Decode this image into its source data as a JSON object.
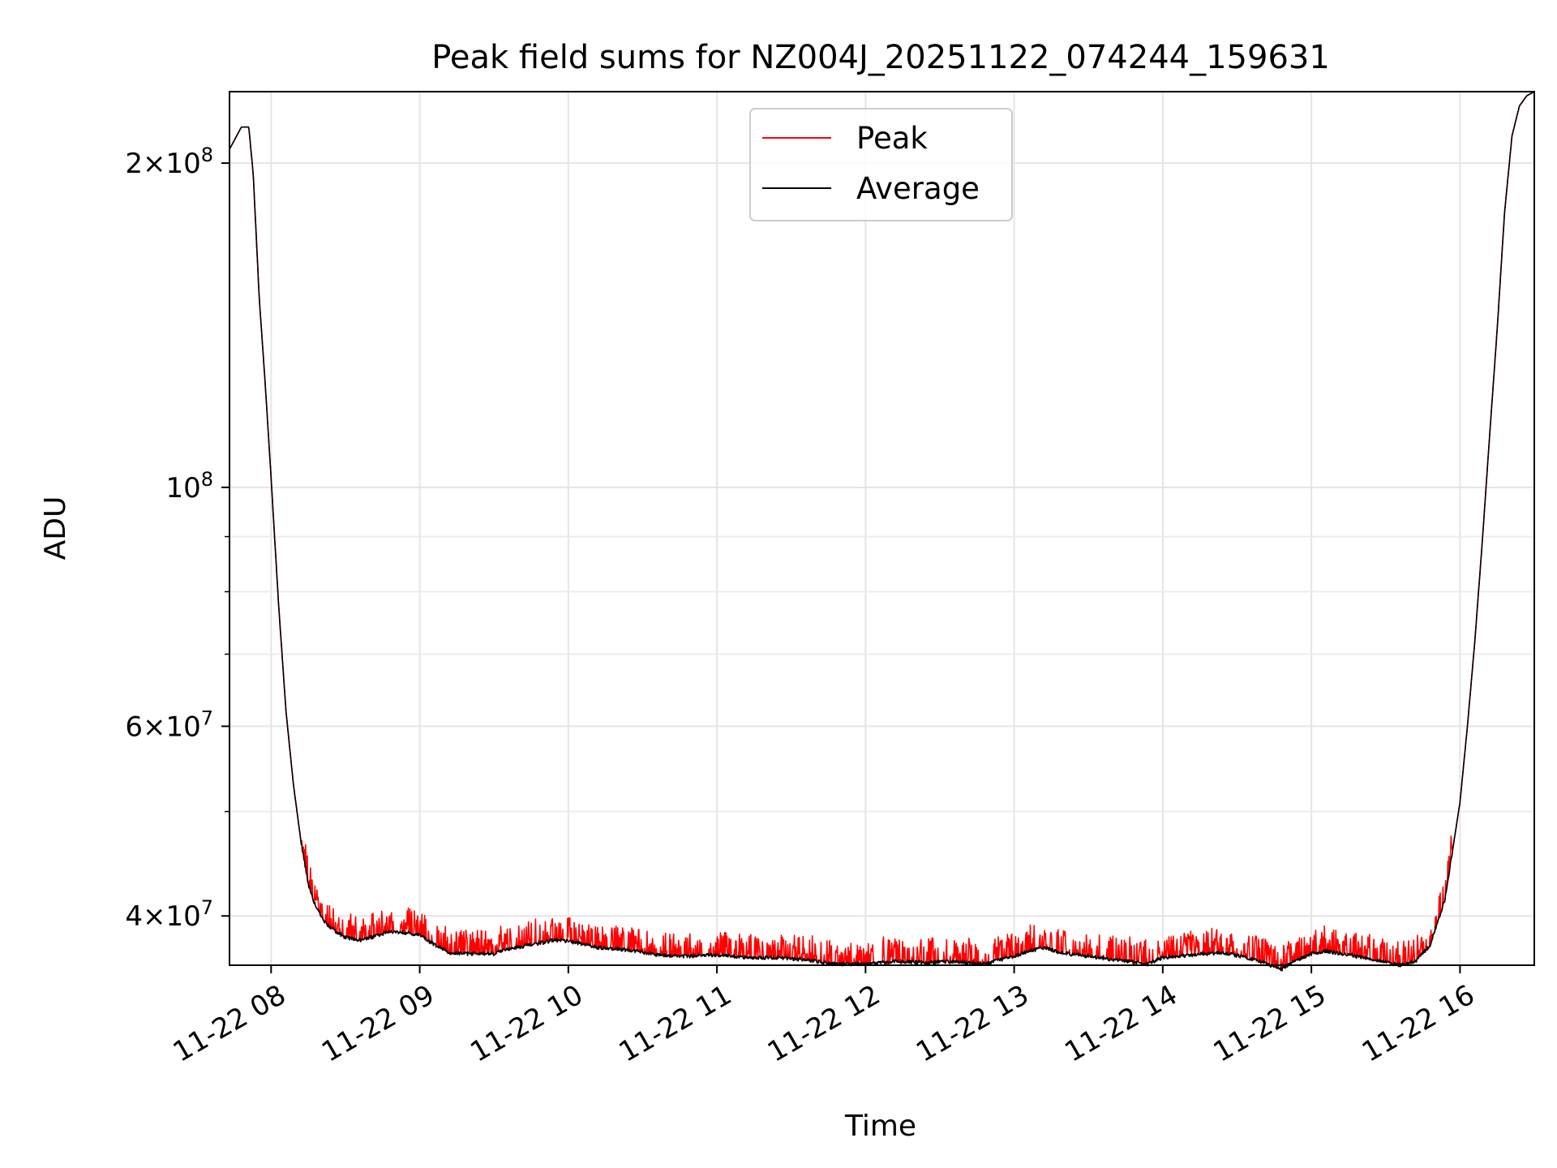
{
  "chart_data": {
    "type": "line",
    "title": "Peak field sums for NZ004J_20251122_074244_159631",
    "xlabel": "Time",
    "ylabel": "ADU",
    "yscale": "log",
    "xlim_hours": [
      7.72,
      16.5
    ],
    "ylim": [
      36000000,
      233000000
    ],
    "grid": true,
    "legend_position": "upper center",
    "x_tick_labels": [
      "11-22 08",
      "11-22 09",
      "11-22 10",
      "11-22 11",
      "11-22 12",
      "11-22 13",
      "11-22 14",
      "11-22 15",
      "11-22 16"
    ],
    "x_tick_hours": [
      8,
      9,
      10,
      11,
      12,
      13,
      14,
      15,
      16
    ],
    "y_major_ticks": [
      {
        "value": 40000000,
        "coef": "4",
        "exp": "7"
      },
      {
        "value": 60000000,
        "coef": "6",
        "exp": "7"
      },
      {
        "value": 100000000,
        "coef": "",
        "exp": "8"
      },
      {
        "value": 200000000,
        "coef": "2",
        "exp": "8"
      }
    ],
    "y_minor_ticks": [
      50000000,
      70000000,
      80000000,
      90000000
    ],
    "series": [
      {
        "name": "Peak",
        "color": "#ff0000",
        "note": "Follows the average with frequent upward spikes of roughly 3-5% during 08:15-15:55"
      },
      {
        "name": "Average",
        "color": "#000000",
        "hours": [
          7.72,
          7.8,
          7.85,
          7.88,
          7.92,
          7.96,
          8.0,
          8.05,
          8.1,
          8.15,
          8.2,
          8.25,
          8.3,
          8.35,
          8.4,
          8.5,
          8.6,
          8.7,
          8.8,
          8.9,
          9.0,
          9.1,
          9.2,
          9.3,
          9.5,
          9.6,
          9.7,
          9.8,
          9.9,
          10.0,
          10.2,
          10.4,
          10.6,
          10.8,
          11.0,
          11.2,
          11.4,
          11.6,
          11.8,
          12.0,
          12.2,
          12.4,
          12.6,
          12.8,
          13.0,
          13.1,
          13.2,
          13.3,
          13.5,
          13.7,
          13.9,
          14.0,
          14.2,
          14.4,
          14.6,
          14.7,
          14.8,
          14.9,
          15.0,
          15.1,
          15.2,
          15.4,
          15.6,
          15.7,
          15.8,
          15.9,
          16.0,
          16.05,
          16.1,
          16.15,
          16.2,
          16.25,
          16.3,
          16.35,
          16.4,
          16.45,
          16.5
        ],
        "values": [
          206000000,
          216000000,
          216000000,
          195000000,
          150000000,
          125000000,
          102000000,
          78000000,
          62000000,
          53000000,
          47000000,
          42800000,
          40800000,
          39700000,
          39000000,
          38200000,
          38000000,
          38300000,
          38700000,
          38600000,
          38400000,
          37600000,
          37000000,
          36900000,
          36900000,
          37300000,
          37500000,
          37700000,
          38000000,
          37900000,
          37400000,
          37200000,
          36800000,
          36700000,
          36800000,
          36600000,
          36600000,
          36400000,
          36100000,
          36100000,
          36300000,
          36200000,
          36300000,
          36100000,
          36700000,
          37100000,
          37400000,
          37000000,
          36700000,
          36400000,
          36100000,
          36600000,
          36800000,
          37000000,
          36500000,
          36100000,
          35700000,
          36400000,
          36900000,
          37100000,
          36900000,
          36500000,
          36000000,
          36300000,
          37600000,
          41500000,
          51000000,
          60000000,
          72000000,
          89000000,
          112000000,
          140000000,
          180000000,
          212000000,
          226000000,
          231000000,
          233000000
        ]
      }
    ]
  }
}
